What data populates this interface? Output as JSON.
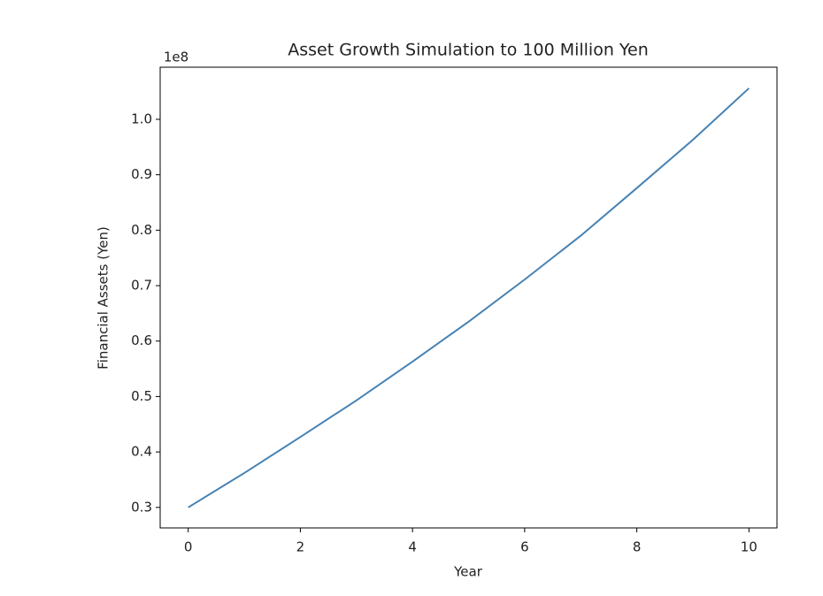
{
  "chart_data": {
    "type": "line",
    "title": "Asset Growth Simulation to 100 Million Yen",
    "x_label": "Year",
    "y_label": "Financial Assets (Yen)",
    "y_offset_label": "1e8",
    "x": [
      0,
      1,
      2,
      3,
      4,
      5,
      6,
      7,
      8,
      9,
      10
    ],
    "series": [
      {
        "name": "Financial Assets",
        "color": "#4682b4",
        "values": [
          0.3,
          0.362,
          0.427,
          0.493,
          0.563,
          0.635,
          0.711,
          0.79,
          0.876,
          0.963,
          1.056
        ]
      }
    ],
    "xlim": [
      -0.5,
      10.5
    ],
    "ylim": [
      0.263,
      1.094
    ],
    "xticks": [
      0,
      2,
      4,
      6,
      8,
      10
    ],
    "yticks": [
      0.3,
      0.4,
      0.5,
      0.6,
      0.7,
      0.8,
      0.9,
      {
        "value": 1,
        "label": "1.0"
      }
    ],
    "grid": false
  }
}
